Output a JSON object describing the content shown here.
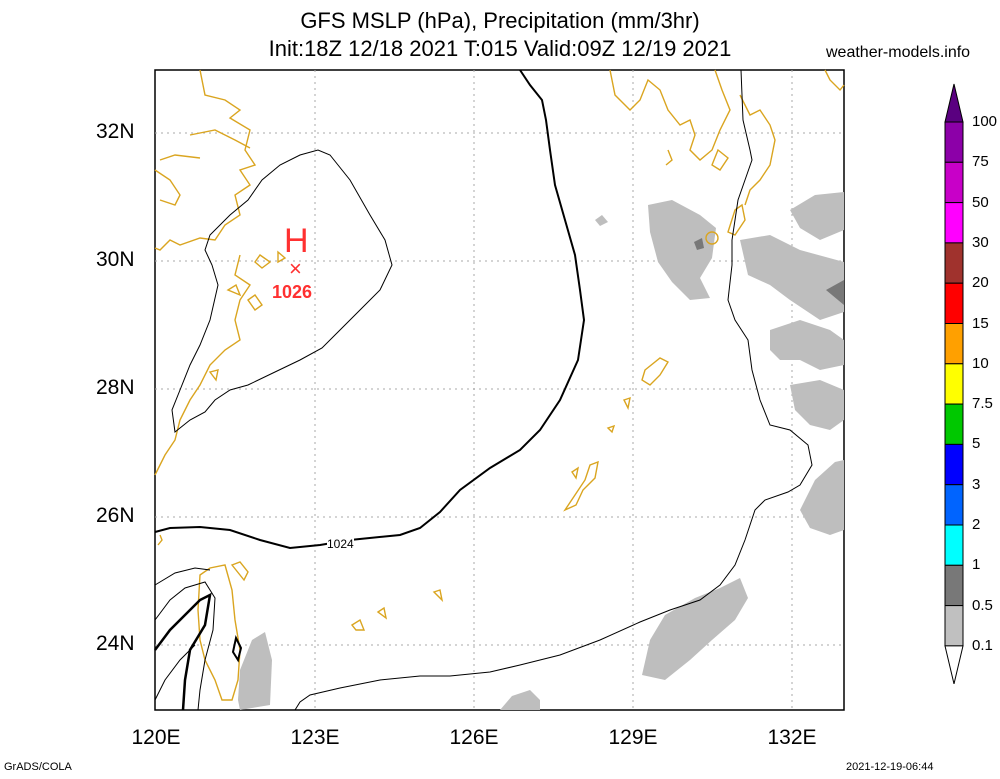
{
  "title_line1": "GFS MSLP (hPa), Precipitation (mm/3hr)",
  "title_line2": "Init:18Z 12/18 2021 T:015 Valid:09Z 12/19 2021",
  "site": "weather-models.info",
  "footer_left": "GrADS/COLA",
  "footer_right": "2021-12-19-06:44",
  "lat_labels": [
    "32N",
    "30N",
    "28N",
    "26N",
    "24N"
  ],
  "lon_labels": [
    "120E",
    "123E",
    "126E",
    "129E",
    "132E"
  ],
  "high": {
    "symbol": "H",
    "mark": "×",
    "value": "1026"
  },
  "isobar_label": "1024",
  "legend": {
    "levels": [
      "100",
      "75",
      "50",
      "30",
      "20",
      "15",
      "10",
      "7.5",
      "5",
      "3",
      "2",
      "1",
      "0.5",
      "0.1"
    ],
    "colors": [
      "#5a0080",
      "#8c00a8",
      "#c800c8",
      "#ff00ff",
      "#a0322d",
      "#ff0000",
      "#ffa000",
      "#ffff00",
      "#00c800",
      "#0000ff",
      "#0064ff",
      "#00ffff",
      "#787878",
      "#c0c0c0"
    ]
  },
  "colors": {
    "coastline": "#daa520",
    "precip_light": "#bebebe",
    "precip_dark": "#787878",
    "high_marker": "#ff3030",
    "isobar": "#000000"
  }
}
